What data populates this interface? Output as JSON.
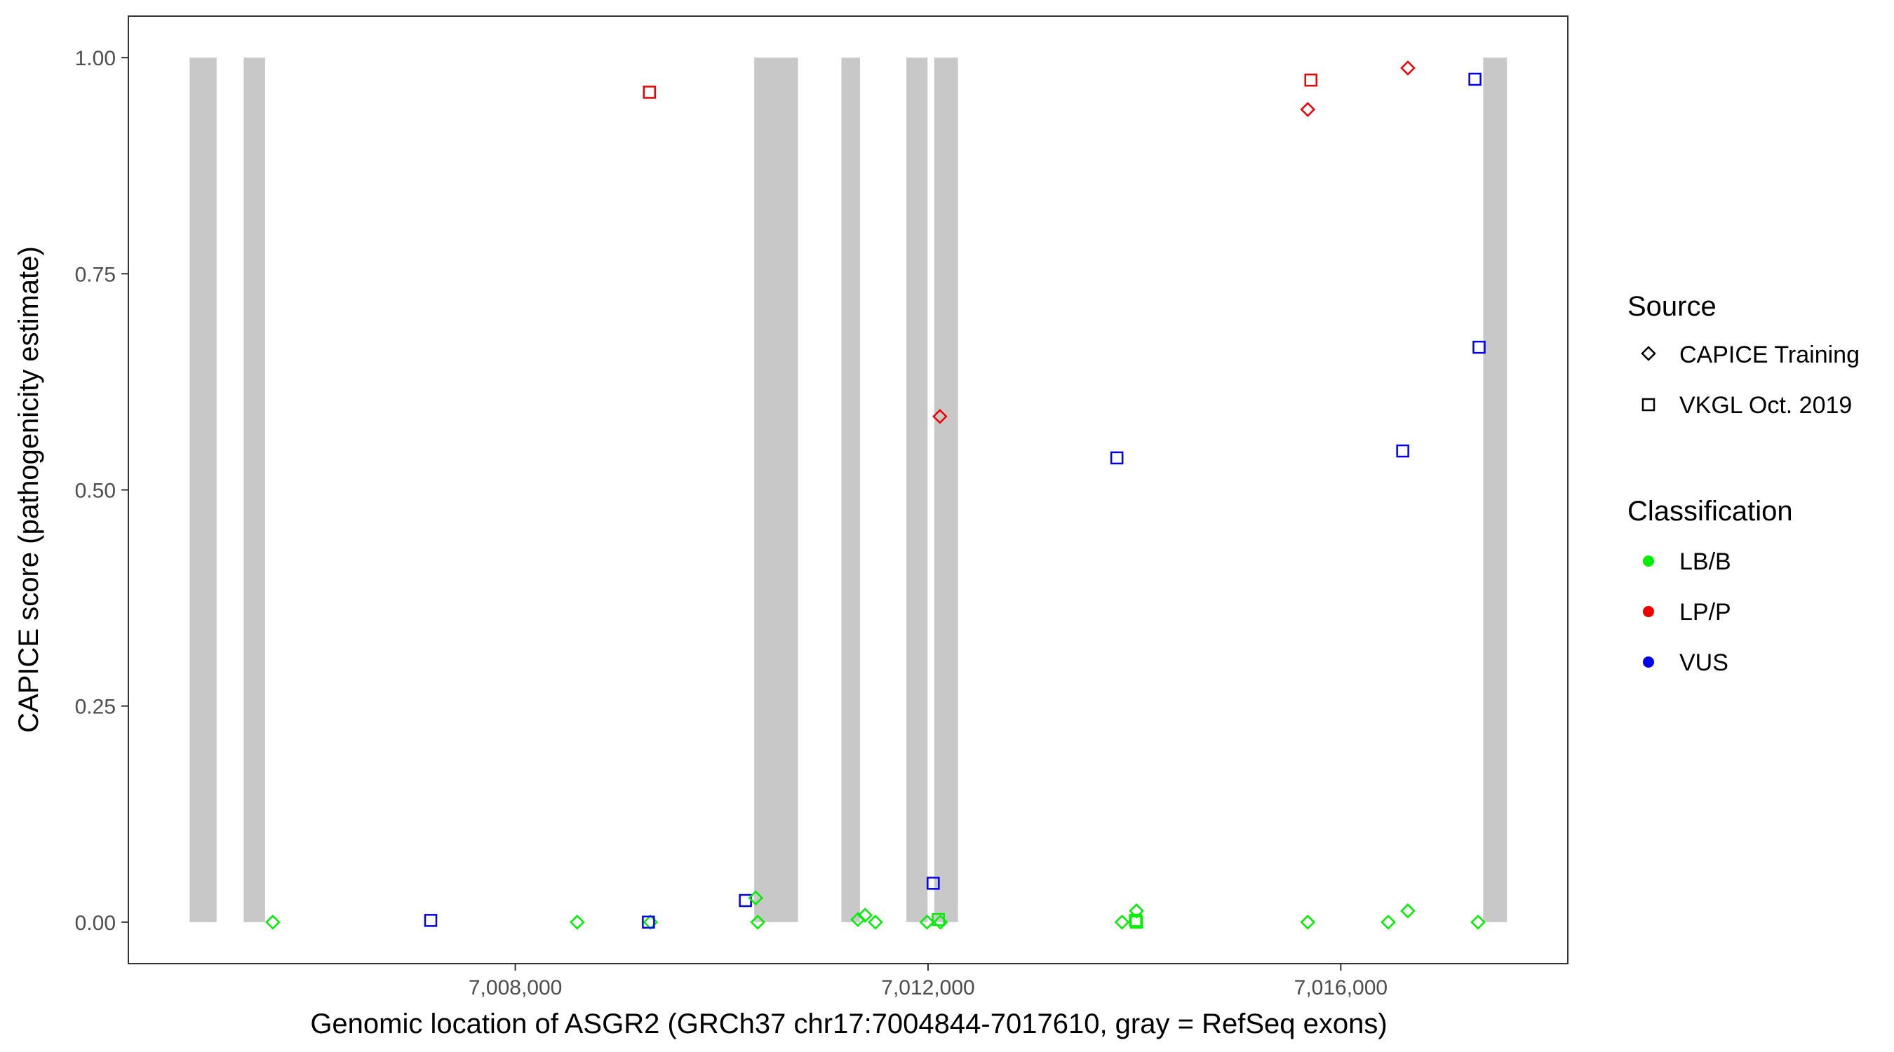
{
  "chart_data": {
    "type": "scatter",
    "xlabel": "Genomic location of ASGR2 (GRCh37 chr17:7004844-7017610, gray = RefSeq exons)",
    "ylabel": "CAPICE score (pathogenicity estimate)",
    "xlim": [
      7004250,
      7018200
    ],
    "ylim": [
      -0.048,
      1.048
    ],
    "x_ticks": [
      7008000,
      7012000,
      7016000
    ],
    "x_tick_labels": [
      "7,008,000",
      "7,012,000",
      "7,016,000"
    ],
    "y_ticks": [
      0,
      0.25,
      0.5,
      0.75,
      1
    ],
    "y_tick_labels": [
      "0.00",
      "0.25",
      "0.50",
      "0.75",
      "1.00"
    ],
    "grid": false,
    "legend_position": "right",
    "exons": [
      {
        "start": 7004844,
        "end": 7005105
      },
      {
        "start": 7005368,
        "end": 7005575
      },
      {
        "start": 7010315,
        "end": 7010740
      },
      {
        "start": 7011160,
        "end": 7011340
      },
      {
        "start": 7011790,
        "end": 7011995
      },
      {
        "start": 7012060,
        "end": 7012290
      },
      {
        "start": 7017380,
        "end": 7017610
      }
    ],
    "exon_color": "#c8c8c8",
    "legends": {
      "source": {
        "title": "Source",
        "items": [
          {
            "label": "CAPICE Training",
            "shape": "diamond"
          },
          {
            "label": "VKGL Oct. 2019",
            "shape": "square"
          }
        ]
      },
      "classification": {
        "title": "Classification",
        "items": [
          {
            "label": "LB/B",
            "color": "#00ee00"
          },
          {
            "label": "LP/P",
            "color": "#ee0000"
          },
          {
            "label": "VUS",
            "color": "#0000ee"
          }
        ]
      }
    },
    "points": [
      {
        "x": 7005650,
        "y": 0.0,
        "shape": "diamond",
        "cls": "LB/B"
      },
      {
        "x": 7007180,
        "y": 0.002,
        "shape": "square",
        "cls": "VUS"
      },
      {
        "x": 7008600,
        "y": 0.0,
        "shape": "diamond",
        "cls": "LB/B"
      },
      {
        "x": 7009300,
        "y": 0.96,
        "shape": "square",
        "cls": "LP/P"
      },
      {
        "x": 7009310,
        "y": 0.0,
        "shape": "diamond",
        "cls": "LB/B"
      },
      {
        "x": 7009290,
        "y": 0.0,
        "shape": "square",
        "cls": "VUS"
      },
      {
        "x": 7010230,
        "y": 0.025,
        "shape": "square",
        "cls": "VUS"
      },
      {
        "x": 7010330,
        "y": 0.028,
        "shape": "diamond",
        "cls": "LB/B"
      },
      {
        "x": 7010350,
        "y": 0.0,
        "shape": "diamond",
        "cls": "LB/B"
      },
      {
        "x": 7011320,
        "y": 0.003,
        "shape": "diamond",
        "cls": "LB/B"
      },
      {
        "x": 7011390,
        "y": 0.008,
        "shape": "diamond",
        "cls": "LB/B"
      },
      {
        "x": 7011490,
        "y": 0.0,
        "shape": "diamond",
        "cls": "LB/B"
      },
      {
        "x": 7011990,
        "y": 0.0,
        "shape": "diamond",
        "cls": "LB/B"
      },
      {
        "x": 7012050,
        "y": 0.045,
        "shape": "square",
        "cls": "VUS"
      },
      {
        "x": 7012100,
        "y": 0.003,
        "shape": "square",
        "cls": "LB/B"
      },
      {
        "x": 7012120,
        "y": 0.0,
        "shape": "diamond",
        "cls": "LB/B"
      },
      {
        "x": 7012115,
        "y": 0.585,
        "shape": "diamond",
        "cls": "LP/P"
      },
      {
        "x": 7013830,
        "y": 0.537,
        "shape": "square",
        "cls": "VUS"
      },
      {
        "x": 7013880,
        "y": 0.0,
        "shape": "diamond",
        "cls": "LB/B"
      },
      {
        "x": 7014020,
        "y": 0.013,
        "shape": "diamond",
        "cls": "LB/B"
      },
      {
        "x": 7014010,
        "y": 0.002,
        "shape": "square",
        "cls": "LB/B"
      },
      {
        "x": 7014020,
        "y": 0.0,
        "shape": "square",
        "cls": "LB/B"
      },
      {
        "x": 7015680,
        "y": 0.94,
        "shape": "diamond",
        "cls": "LP/P"
      },
      {
        "x": 7015710,
        "y": 0.974,
        "shape": "square",
        "cls": "LP/P"
      },
      {
        "x": 7015680,
        "y": 0.0,
        "shape": "diamond",
        "cls": "LB/B"
      },
      {
        "x": 7016460,
        "y": 0.0,
        "shape": "diamond",
        "cls": "LB/B"
      },
      {
        "x": 7016600,
        "y": 0.545,
        "shape": "square",
        "cls": "VUS"
      },
      {
        "x": 7016650,
        "y": 0.013,
        "shape": "diamond",
        "cls": "LB/B"
      },
      {
        "x": 7016650,
        "y": 0.988,
        "shape": "diamond",
        "cls": "LP/P"
      },
      {
        "x": 7017300,
        "y": 0.975,
        "shape": "square",
        "cls": "VUS"
      },
      {
        "x": 7017340,
        "y": 0.665,
        "shape": "square",
        "cls": "VUS"
      },
      {
        "x": 7017330,
        "y": 0.0,
        "shape": "diamond",
        "cls": "LB/B"
      }
    ]
  }
}
